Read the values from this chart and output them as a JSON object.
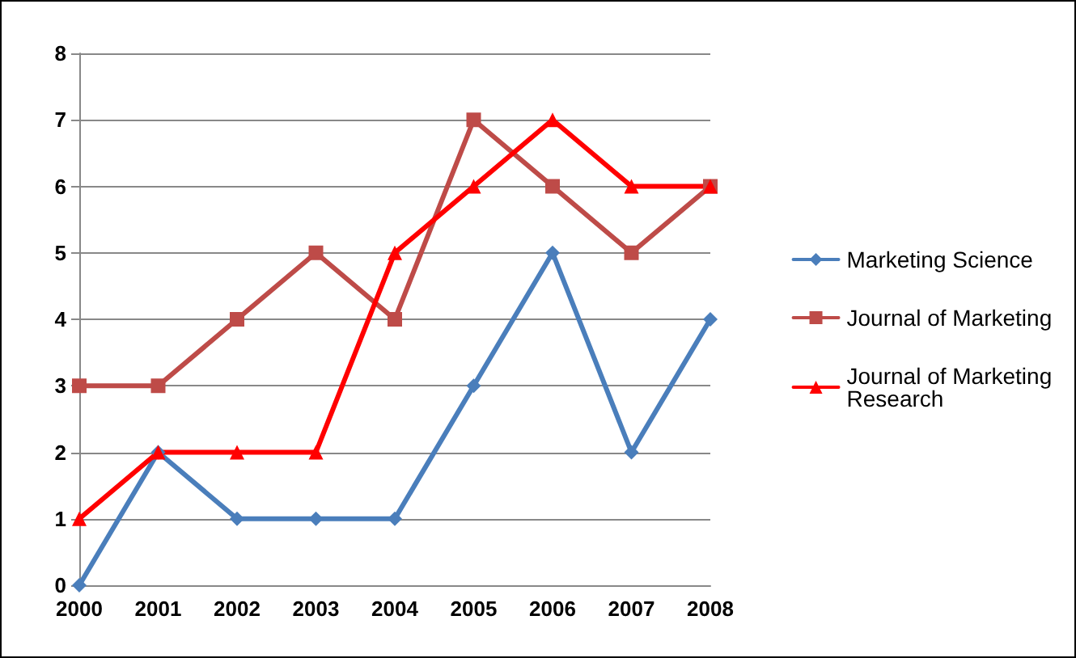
{
  "chart_data": {
    "type": "line",
    "categories": [
      "2000",
      "2001",
      "2002",
      "2003",
      "2004",
      "2005",
      "2006",
      "2007",
      "2008"
    ],
    "series": [
      {
        "name": "Marketing Science",
        "color": "#4a7ebb",
        "marker": "diamond",
        "values": [
          0,
          2,
          1,
          1,
          1,
          3,
          5,
          2,
          4
        ]
      },
      {
        "name": "Journal of Marketing",
        "color": "#be4b48",
        "marker": "square",
        "values": [
          3,
          3,
          4,
          5,
          4,
          7,
          6,
          5,
          6
        ]
      },
      {
        "name": "Journal of Marketing Research",
        "color": "#ff0000",
        "marker": "triangle",
        "values": [
          1,
          2,
          2,
          2,
          5,
          6,
          7,
          6,
          6
        ]
      }
    ],
    "ylim": [
      0,
      8
    ],
    "yticks": [
      0,
      1,
      2,
      3,
      4,
      5,
      6,
      7,
      8
    ],
    "grid": "y",
    "legend": "right",
    "line_style": "solid"
  }
}
